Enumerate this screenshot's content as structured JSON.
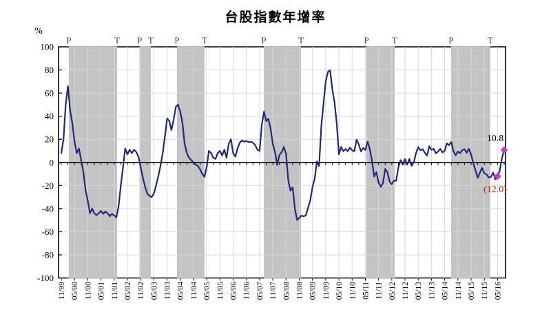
{
  "title": "台股指數年增率",
  "y_axis_unit_label": "%",
  "annotations": {
    "last_value_label": "10.8",
    "dip_value_label": "(12.0)"
  },
  "colors": {
    "line": "#1f2a7e",
    "band": "#c3c3c3",
    "grid": "#d9d9d9",
    "axis": "#000000",
    "marker": "#d23ace",
    "pt_label_color": "#31405f",
    "annotation_color": "#000000",
    "annotation_negative_color": "#c9211e",
    "background": "#ffffff"
  },
  "chart_data": {
    "type": "line",
    "title": "台股指數年增率",
    "ylabel": "%",
    "ylim": [
      -100,
      100
    ],
    "y_ticks": [
      100,
      80,
      60,
      40,
      20,
      0,
      -20,
      -40,
      -60,
      -80,
      -100
    ],
    "x_start_month": "1999-11",
    "x_end_month": "2016-08",
    "x_tick_labels": [
      "11/99",
      "05/00",
      "11/00",
      "05/01",
      "11/01",
      "05/02",
      "11/02",
      "05/03",
      "11/03",
      "05/04",
      "11/04",
      "05/05",
      "11/05",
      "05/06",
      "11/06",
      "05/07",
      "11/07",
      "05/08",
      "11/08",
      "05/09",
      "11/09",
      "05/10",
      "11/10",
      "05/11",
      "11/11",
      "05/12",
      "11/12",
      "05/13",
      "11/13",
      "05/14",
      "11/14",
      "05/15",
      "11/15",
      "05/16"
    ],
    "grid": true,
    "legend": false,
    "series": [
      {
        "name": "台股指數年增率 (%)",
        "monthly_values": [
          8,
          20,
          50,
          66,
          45,
          34,
          18,
          8,
          12,
          2,
          -8,
          -24,
          -33,
          -44,
          -40,
          -44,
          -45.5,
          -44,
          -42,
          -44.5,
          -42.5,
          -44,
          -46.5,
          -44.5,
          -46,
          -47.5,
          -38,
          -20,
          -4,
          12,
          7,
          11,
          8,
          11,
          9,
          5,
          -4,
          -13,
          -21,
          -27,
          -29,
          -30,
          -27,
          -20,
          -12,
          -3,
          8,
          22,
          38,
          36,
          28,
          37,
          48,
          50,
          44,
          34,
          16,
          8,
          4,
          2,
          0,
          -2,
          -3,
          -6,
          -10,
          -12.5,
          -4,
          10,
          8,
          4,
          3,
          8,
          10,
          6,
          11,
          4,
          16,
          20,
          8,
          5,
          12,
          17,
          19,
          18,
          18.5,
          17.5,
          18,
          17,
          15,
          11,
          10,
          32.5,
          43.9,
          35.8,
          37.6,
          29,
          16,
          9,
          -2.3,
          6.5,
          8.7,
          13.3,
          7.5,
          -15.3,
          -24.4,
          -21.6,
          -39.7,
          -49.8,
          -48.1,
          -46,
          -46.7,
          -45.8,
          -39.2,
          -32.8,
          -21.3,
          -14.1,
          0.8,
          -3.1,
          31.3,
          50.7,
          70,
          78.3,
          79.8,
          63.2,
          52,
          33.6,
          7,
          13.4,
          9.7,
          11.6,
          9.7,
          12.9,
          10.4,
          9.6,
          19.7,
          15.6,
          9.5,
          12.5,
          10.7,
          18.1,
          11.4,
          1.6,
          -12.3,
          -8.4,
          -17.5,
          -21.2,
          -17.8,
          -5.6,
          -8.6,
          -16.7,
          -18.9,
          -15.7,
          -15.9,
          -4.4,
          2,
          -2,
          3,
          -2,
          3,
          -3,
          0,
          8,
          13.1,
          10.5,
          11.5,
          8.4,
          5.9,
          14,
          10.9,
          11.8,
          7.8,
          9.4,
          11.7,
          8.6,
          9.9,
          16.5,
          14.9,
          17.6,
          9.7,
          6.2,
          9.3,
          8.1,
          10.6,
          11.4,
          8.3,
          11.7,
          6.9,
          -0.7,
          -7,
          -13.4,
          -8.8,
          -4.7,
          -9.4,
          -10.4,
          -13,
          -12.6,
          -8.8,
          -14.7,
          -12,
          -7,
          3.7,
          10.8
        ]
      }
    ],
    "shaded_cycle_bands_month_index": [
      [
        3.4,
        25.3
      ],
      [
        35.5,
        40.6
      ],
      [
        52.5,
        65.0
      ],
      [
        91.9,
        108.8
      ],
      [
        138.5,
        151.3
      ],
      [
        176.9,
        194.7
      ]
    ],
    "peak_label": "P",
    "trough_label": "T",
    "cycle_markers": [
      {
        "label": "P",
        "month_index": 3.4
      },
      {
        "label": "T",
        "month_index": 25.3
      },
      {
        "label": "P",
        "month_index": 35.5
      },
      {
        "label": "T",
        "month_index": 40.6
      },
      {
        "label": "P",
        "month_index": 52.5
      },
      {
        "label": "T",
        "month_index": 65.0
      },
      {
        "label": "P",
        "month_index": 91.9
      },
      {
        "label": "T",
        "month_index": 108.8
      },
      {
        "label": "P",
        "month_index": 138.5
      },
      {
        "label": "T",
        "month_index": 151.3
      },
      {
        "label": "P",
        "month_index": 176.9
      },
      {
        "label": "T",
        "month_index": 194.7
      }
    ],
    "point_markers": [
      {
        "month_index": 198,
        "value": -12.0,
        "label": "(12.0)"
      },
      {
        "month_index": 201,
        "value": 10.8,
        "label": "10.8"
      }
    ]
  }
}
